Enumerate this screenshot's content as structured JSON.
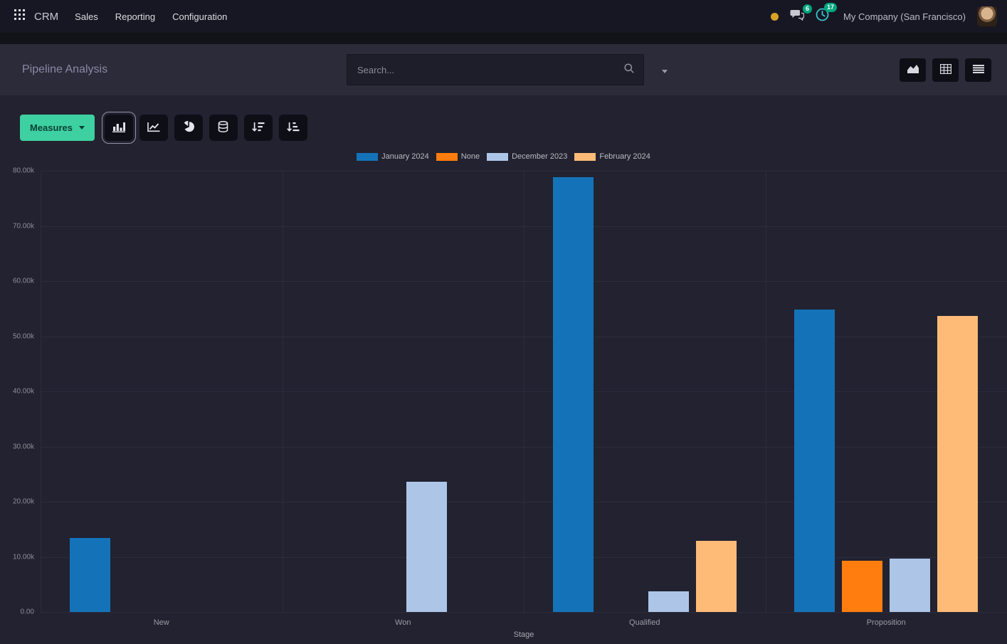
{
  "topbar": {
    "app_name": "CRM",
    "menus": [
      "Sales",
      "Reporting",
      "Configuration"
    ],
    "messages_badge": "6",
    "activities_badge": "17",
    "company": "My Company (San Francisco)"
  },
  "control_panel": {
    "title": "Pipeline Analysis",
    "search_placeholder": "Search..."
  },
  "toolbar": {
    "measures_label": "Measures"
  },
  "icons": {
    "topbar": [
      "apps-grid-icon",
      "status-dot",
      "chat-bubbles-icon",
      "clock-icon"
    ],
    "search": "magnifier-icon",
    "view_switcher": [
      "area-chart-icon",
      "pivot-table-icon",
      "list-icon"
    ],
    "toolbar": [
      "bar-chart-icon",
      "line-chart-icon",
      "pie-chart-icon",
      "stacked-database-icon",
      "sort-desc-icon",
      "sort-asc-icon"
    ]
  },
  "colors": {
    "accent_green": "#3ed0a0",
    "badge_green": "#00a77c",
    "status_yellow": "#d9a224",
    "panel_bg": "#2b2b39",
    "content_bg": "#222230",
    "topbar_bg": "#171723"
  },
  "chart_data": {
    "type": "bar",
    "title": "",
    "xlabel": "Stage",
    "ylabel": "",
    "categories": [
      "New",
      "Won",
      "Qualified",
      "Proposition"
    ],
    "series": [
      {
        "name": "January 2024",
        "color": "#1473b8",
        "values": [
          13400,
          0,
          78900,
          54900
        ]
      },
      {
        "name": "None",
        "color": "#ff7d0e",
        "values": [
          0,
          0,
          0,
          9300
        ]
      },
      {
        "name": "December 2023",
        "color": "#adc6e8",
        "values": [
          0,
          23600,
          3700,
          9700
        ]
      },
      {
        "name": "February 2024",
        "color": "#fdbb77",
        "values": [
          0,
          0,
          12900,
          53700
        ]
      }
    ],
    "ylim": [
      0,
      80000
    ],
    "ytick_step": 10000,
    "ytick_labels": [
      "80.00k",
      "70.00k",
      "60.00k",
      "50.00k",
      "40.00k",
      "30.00k",
      "20.00k",
      "10.00k",
      "0.00"
    ],
    "grid": true,
    "legend_position": "top"
  }
}
